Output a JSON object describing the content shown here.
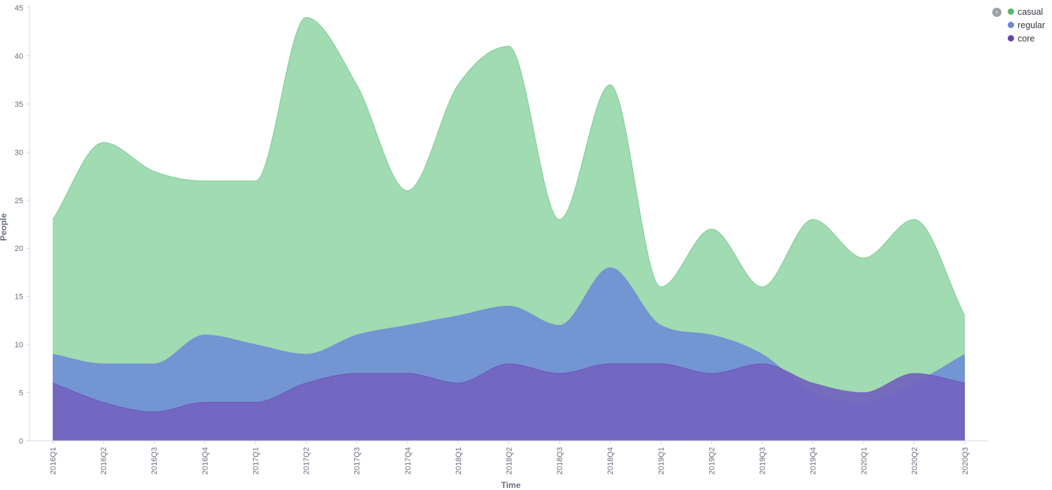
{
  "chart_data": {
    "type": "area",
    "stacked": true,
    "xlabel": "Time",
    "ylabel": "People",
    "ylim": [
      0,
      45
    ],
    "yticks": [
      0,
      5,
      10,
      15,
      20,
      25,
      30,
      35,
      40,
      45
    ],
    "categories": [
      "2016Q1",
      "2016Q2",
      "2016Q3",
      "2016Q4",
      "2017Q1",
      "2017Q2",
      "2017Q3",
      "2017Q4",
      "2018Q1",
      "2018Q2",
      "2018Q3",
      "2018Q4",
      "2019Q1",
      "2019Q2",
      "2019Q3",
      "2019Q4",
      "2020Q1",
      "2020Q2",
      "2020Q3"
    ],
    "series": [
      {
        "name": "casual",
        "color": "#54b96e",
        "fill": "#98d8aa",
        "values": [
          14,
          23,
          20,
          16,
          17,
          35,
          26,
          14,
          24,
          27,
          11,
          19,
          4,
          11,
          7,
          18,
          15,
          17,
          4
        ]
      },
      {
        "name": "regular",
        "color": "#6e86d6",
        "fill": "#6f8fd5",
        "values": [
          3,
          4,
          5,
          7,
          6,
          3,
          4,
          5,
          7,
          6,
          5,
          10,
          4,
          4,
          1,
          -1,
          -1,
          -1,
          3
        ]
      },
      {
        "name": "core",
        "color": "#6a3fb5",
        "fill": "#7263bf",
        "values": [
          6,
          4,
          3,
          4,
          4,
          6,
          7,
          7,
          6,
          8,
          7,
          8,
          8,
          7,
          8,
          6,
          5,
          7,
          6
        ]
      }
    ],
    "legend_position": "top-right",
    "grid": false
  },
  "legend": {
    "toggle_icon": "chevron-right-icon",
    "items": [
      {
        "label": "casual",
        "color": "#54b96e"
      },
      {
        "label": "regular",
        "color": "#6e86d6"
      },
      {
        "label": "core",
        "color": "#6a3fb5"
      }
    ]
  }
}
